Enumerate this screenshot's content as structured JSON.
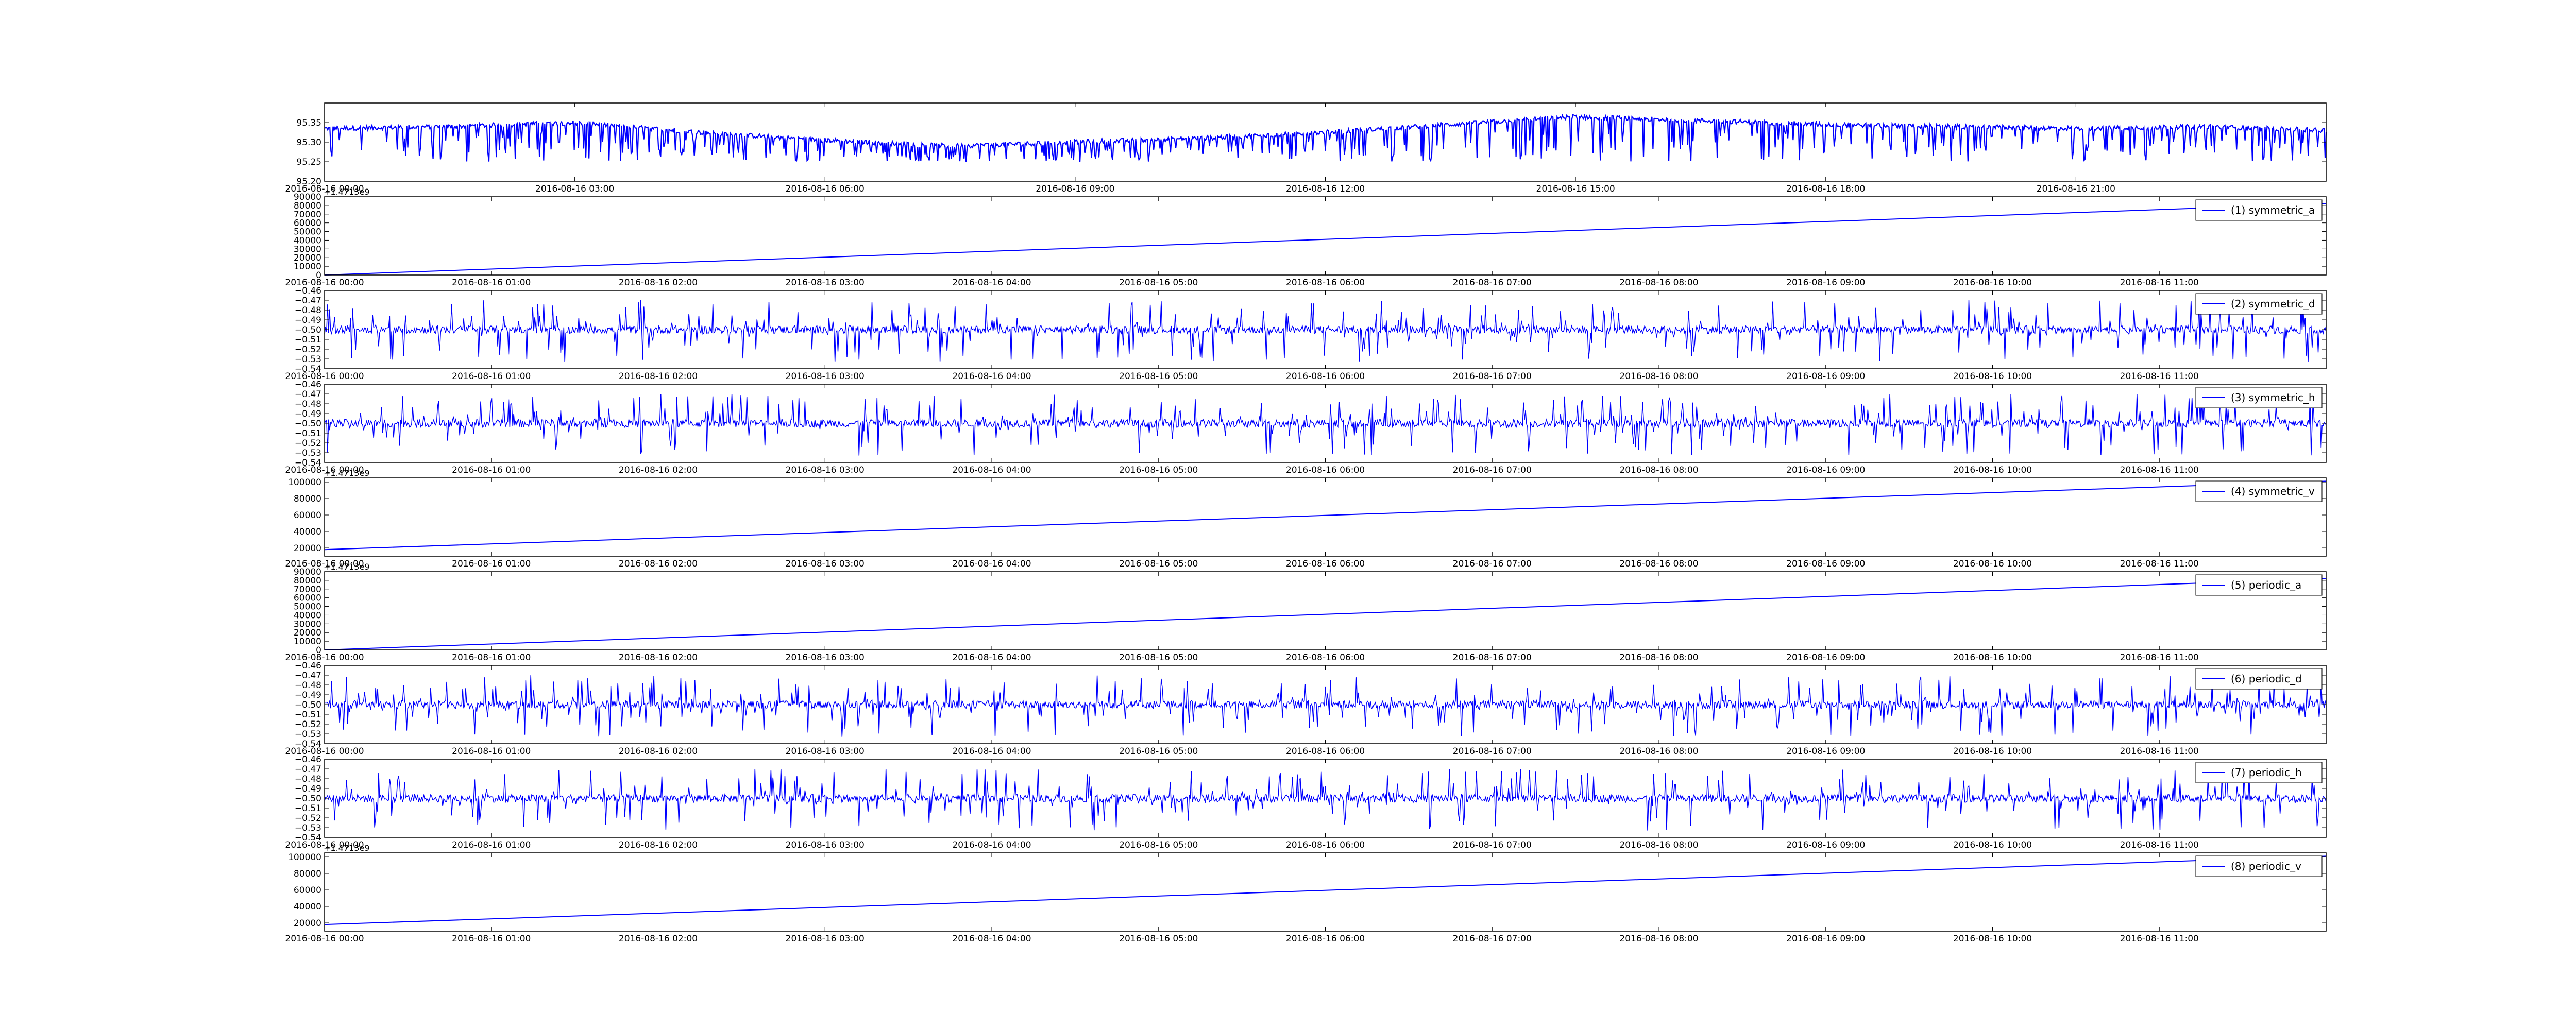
{
  "chart_data": [
    {
      "id": "p0",
      "type": "line",
      "title": "",
      "xlabel": "",
      "ylabel": "",
      "x_ticks": [
        "2016-08-16 00:00",
        "2016-08-16 03:00",
        "2016-08-16 06:00",
        "2016-08-16 09:00",
        "2016-08-16 12:00",
        "2016-08-16 15:00",
        "2016-08-16 18:00",
        "2016-08-16 21:00"
      ],
      "x_range_hours": [
        0,
        24
      ],
      "y_ticks": [
        "95.20",
        "95.25",
        "95.30",
        "95.35"
      ],
      "ylim": [
        95.2,
        95.4
      ],
      "y_offset": "",
      "legend": "",
      "series": [
        {
          "color": "#0000ff",
          "baseline": [
            [
              0,
              95.335
            ],
            [
              1.5,
              95.34
            ],
            [
              3,
              95.35
            ],
            [
              4.5,
              95.325
            ],
            [
              6,
              95.305
            ],
            [
              7.5,
              95.29
            ],
            [
              9,
              95.3
            ],
            [
              10.5,
              95.31
            ],
            [
              12,
              95.325
            ],
            [
              13.5,
              95.345
            ],
            [
              15,
              95.365
            ],
            [
              16.5,
              95.355
            ],
            [
              18,
              95.345
            ],
            [
              19.5,
              95.34
            ],
            [
              21,
              95.335
            ],
            [
              22.5,
              95.34
            ],
            [
              24,
              95.33
            ]
          ],
          "dip_to": 95.25
        }
      ]
    },
    {
      "id": "p1",
      "type": "line",
      "title": "",
      "xlabel": "",
      "ylabel": "",
      "x_ticks": [
        "2016-08-16 00:00",
        "2016-08-16 01:00",
        "2016-08-16 02:00",
        "2016-08-16 03:00",
        "2016-08-16 04:00",
        "2016-08-16 05:00",
        "2016-08-16 06:00",
        "2016-08-16 07:00",
        "2016-08-16 08:00",
        "2016-08-16 09:00",
        "2016-08-16 10:00",
        "2016-08-16 11:00"
      ],
      "x_range_hours": [
        0,
        12
      ],
      "y_ticks": [
        "0",
        "10000",
        "20000",
        "30000",
        "40000",
        "50000",
        "60000",
        "70000",
        "80000",
        "90000"
      ],
      "ylim": [
        0,
        90000
      ],
      "y_offset": "+1.4713e9",
      "legend": "(1) symmetric_a",
      "series": [
        {
          "name": "(1) symmetric_a",
          "color": "#0000ff",
          "line": [
            [
              0,
              0
            ],
            [
              12,
              82000
            ]
          ]
        }
      ]
    },
    {
      "id": "p2",
      "type": "line",
      "title": "",
      "xlabel": "",
      "ylabel": "",
      "x_ticks": [
        "2016-08-16 00:00",
        "2016-08-16 01:00",
        "2016-08-16 02:00",
        "2016-08-16 03:00",
        "2016-08-16 04:00",
        "2016-08-16 05:00",
        "2016-08-16 06:00",
        "2016-08-16 07:00",
        "2016-08-16 08:00",
        "2016-08-16 09:00",
        "2016-08-16 10:00",
        "2016-08-16 11:00"
      ],
      "x_range_hours": [
        0,
        12
      ],
      "y_ticks": [
        "−0.54",
        "−0.53",
        "−0.52",
        "−0.51",
        "−0.50",
        "−0.49",
        "−0.48",
        "−0.47",
        "−0.46"
      ],
      "ylim": [
        -0.54,
        -0.46
      ],
      "y_offset": "",
      "legend": "(2) symmetric_d",
      "series": [
        {
          "name": "(2) symmetric_d",
          "color": "#0000ff",
          "noise_center": -0.5,
          "spike_high": -0.47,
          "spike_low": -0.533
        }
      ]
    },
    {
      "id": "p3",
      "type": "line",
      "title": "",
      "xlabel": "",
      "ylabel": "",
      "x_ticks": [
        "2016-08-16 00:00",
        "2016-08-16 01:00",
        "2016-08-16 02:00",
        "2016-08-16 03:00",
        "2016-08-16 04:00",
        "2016-08-16 05:00",
        "2016-08-16 06:00",
        "2016-08-16 07:00",
        "2016-08-16 08:00",
        "2016-08-16 09:00",
        "2016-08-16 10:00",
        "2016-08-16 11:00"
      ],
      "x_range_hours": [
        0,
        12
      ],
      "y_ticks": [
        "−0.54",
        "−0.53",
        "−0.52",
        "−0.51",
        "−0.50",
        "−0.49",
        "−0.48",
        "−0.47",
        "−0.46"
      ],
      "ylim": [
        -0.54,
        -0.46
      ],
      "y_offset": "",
      "legend": "(3) symmetric_h",
      "series": [
        {
          "name": "(3) symmetric_h",
          "color": "#0000ff",
          "noise_center": -0.5,
          "spike_high": -0.47,
          "spike_low": -0.533
        }
      ]
    },
    {
      "id": "p4",
      "type": "line",
      "title": "",
      "xlabel": "",
      "ylabel": "",
      "x_ticks": [
        "2016-08-16 00:00",
        "2016-08-16 01:00",
        "2016-08-16 02:00",
        "2016-08-16 03:00",
        "2016-08-16 04:00",
        "2016-08-16 05:00",
        "2016-08-16 06:00",
        "2016-08-16 07:00",
        "2016-08-16 08:00",
        "2016-08-16 09:00",
        "2016-08-16 10:00",
        "2016-08-16 11:00"
      ],
      "x_range_hours": [
        0,
        12
      ],
      "y_ticks": [
        "20000",
        "40000",
        "60000",
        "80000",
        "100000"
      ],
      "ylim": [
        10000,
        105000
      ],
      "y_offset": "+1.4713e9",
      "legend": "(4) symmetric_v",
      "series": [
        {
          "name": "(4) symmetric_v",
          "color": "#0000ff",
          "line": [
            [
              0,
              18000
            ],
            [
              12,
              101000
            ]
          ]
        }
      ]
    },
    {
      "id": "p5",
      "type": "line",
      "title": "",
      "xlabel": "",
      "ylabel": "",
      "x_ticks": [
        "2016-08-16 00:00",
        "2016-08-16 01:00",
        "2016-08-16 02:00",
        "2016-08-16 03:00",
        "2016-08-16 04:00",
        "2016-08-16 05:00",
        "2016-08-16 06:00",
        "2016-08-16 07:00",
        "2016-08-16 08:00",
        "2016-08-16 09:00",
        "2016-08-16 10:00",
        "2016-08-16 11:00"
      ],
      "x_range_hours": [
        0,
        12
      ],
      "y_ticks": [
        "0",
        "10000",
        "20000",
        "30000",
        "40000",
        "50000",
        "60000",
        "70000",
        "80000",
        "90000"
      ],
      "ylim": [
        0,
        90000
      ],
      "y_offset": "+1.4713e9",
      "legend": "(5) periodic_a",
      "series": [
        {
          "name": "(5) periodic_a",
          "color": "#0000ff",
          "line": [
            [
              0,
              0
            ],
            [
              12,
              82000
            ]
          ]
        }
      ]
    },
    {
      "id": "p6",
      "type": "line",
      "title": "",
      "xlabel": "",
      "ylabel": "",
      "x_ticks": [
        "2016-08-16 00:00",
        "2016-08-16 01:00",
        "2016-08-16 02:00",
        "2016-08-16 03:00",
        "2016-08-16 04:00",
        "2016-08-16 05:00",
        "2016-08-16 06:00",
        "2016-08-16 07:00",
        "2016-08-16 08:00",
        "2016-08-16 09:00",
        "2016-08-16 10:00",
        "2016-08-16 11:00"
      ],
      "x_range_hours": [
        0,
        12
      ],
      "y_ticks": [
        "−0.54",
        "−0.53",
        "−0.52",
        "−0.51",
        "−0.50",
        "−0.49",
        "−0.48",
        "−0.47",
        "−0.46"
      ],
      "ylim": [
        -0.54,
        -0.46
      ],
      "y_offset": "",
      "legend": "(6) periodic_d",
      "series": [
        {
          "name": "(6) periodic_d",
          "color": "#0000ff",
          "noise_center": -0.5,
          "spike_high": -0.47,
          "spike_low": -0.533
        }
      ]
    },
    {
      "id": "p7",
      "type": "line",
      "title": "",
      "xlabel": "",
      "ylabel": "",
      "x_ticks": [
        "2016-08-16 00:00",
        "2016-08-16 01:00",
        "2016-08-16 02:00",
        "2016-08-16 03:00",
        "2016-08-16 04:00",
        "2016-08-16 05:00",
        "2016-08-16 06:00",
        "2016-08-16 07:00",
        "2016-08-16 08:00",
        "2016-08-16 09:00",
        "2016-08-16 10:00",
        "2016-08-16 11:00"
      ],
      "x_range_hours": [
        0,
        12
      ],
      "y_ticks": [
        "−0.54",
        "−0.53",
        "−0.52",
        "−0.51",
        "−0.50",
        "−0.49",
        "−0.48",
        "−0.47",
        "−0.46"
      ],
      "ylim": [
        -0.54,
        -0.46
      ],
      "y_offset": "",
      "legend": "(7) periodic_h",
      "series": [
        {
          "name": "(7) periodic_h",
          "color": "#0000ff",
          "noise_center": -0.5,
          "spike_high": -0.47,
          "spike_low": -0.533
        }
      ]
    },
    {
      "id": "p8",
      "type": "line",
      "title": "",
      "xlabel": "",
      "ylabel": "",
      "x_ticks": [
        "2016-08-16 00:00",
        "2016-08-16 01:00",
        "2016-08-16 02:00",
        "2016-08-16 03:00",
        "2016-08-16 04:00",
        "2016-08-16 05:00",
        "2016-08-16 06:00",
        "2016-08-16 07:00",
        "2016-08-16 08:00",
        "2016-08-16 09:00",
        "2016-08-16 10:00",
        "2016-08-16 11:00"
      ],
      "x_range_hours": [
        0,
        12
      ],
      "y_ticks": [
        "20000",
        "40000",
        "60000",
        "80000",
        "100000"
      ],
      "ylim": [
        10000,
        105000
      ],
      "y_offset": "+1.4713e9",
      "legend": "(8) periodic_v",
      "series": [
        {
          "name": "(8) periodic_v",
          "color": "#0000ff",
          "line": [
            [
              0,
              18000
            ],
            [
              12,
              101000
            ]
          ]
        }
      ]
    }
  ]
}
